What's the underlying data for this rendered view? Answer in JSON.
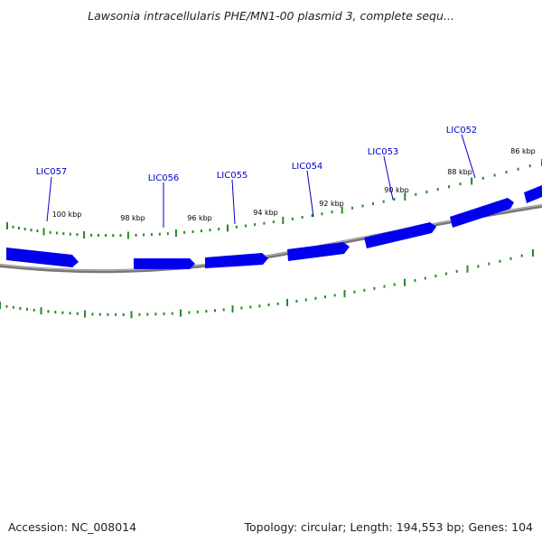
{
  "title": "Lawsonia intracellularis PHE/MN1-00 plasmid 3, complete sequ...",
  "footer": {
    "accession": "Accession: NC_008014",
    "summary": "Topology: circular; Length: 194,553 bp; Genes: 104"
  },
  "colors": {
    "gene_fill": "#0000ee",
    "gene_shade": "#7777ff",
    "gene_label": "#0000cc",
    "backbone": "#888888",
    "tick": "#228b22",
    "tick_label": "#000000"
  },
  "map": {
    "ticks": [
      "100 kbp",
      "98 kbp",
      "96 kbp",
      "94 kbp",
      "92 kbp",
      "90 kbp",
      "88 kbp",
      "86 kbp"
    ],
    "genes": [
      "LIC057",
      "LIC056",
      "LIC055",
      "LIC054",
      "LIC053",
      "LIC052"
    ]
  }
}
